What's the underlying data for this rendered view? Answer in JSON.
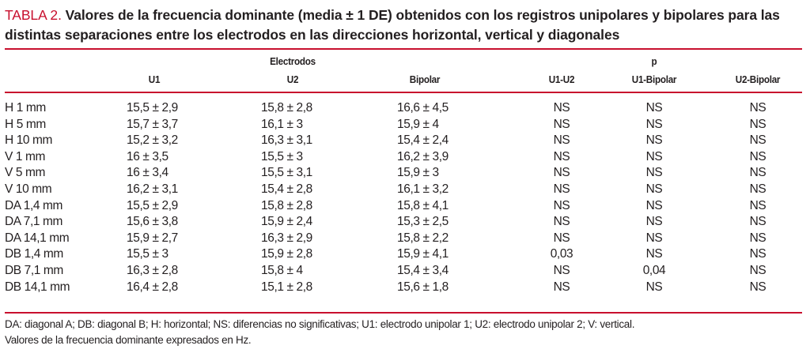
{
  "title": {
    "label": "TABLA 2.",
    "text": "Valores de la frecuencia dominante (media ± 1 DE) obtenidos con los registros unipolares y bipolares para las distintas separaciones entre los electrodos en las direcciones horizontal, vertical y diagonales"
  },
  "header": {
    "group_electrodos": "Electrodos",
    "group_p": "p",
    "columns": [
      "U1",
      "U2",
      "Bipolar",
      "U1-U2",
      "U1-Bipolar",
      "U2-Bipolar"
    ]
  },
  "rows": [
    [
      "H 1 mm",
      "15,5 ± 2,9",
      "15,8 ± 2,8",
      "16,6 ± 4,5",
      "NS",
      "NS",
      "NS"
    ],
    [
      "H 5 mm",
      "15,7 ± 3,7",
      "16,1 ± 3",
      "15,9 ± 4",
      "NS",
      "NS",
      "NS"
    ],
    [
      "H 10 mm",
      "15,2 ± 3,2",
      "16,3 ± 3,1",
      "15,4 ± 2,4",
      "NS",
      "NS",
      "NS"
    ],
    [
      "V 1 mm",
      "16 ± 3,5",
      "15,5 ± 3",
      "16,2 ± 3,9",
      "NS",
      "NS",
      "NS"
    ],
    [
      "V 5 mm",
      "16 ± 3,4",
      "15,5 ± 3,1",
      "15,9 ± 3",
      "NS",
      "NS",
      "NS"
    ],
    [
      "V 10 mm",
      "16,2 ± 3,1",
      "15,4 ± 2,8",
      "16,1 ± 3,2",
      "NS",
      "NS",
      "NS"
    ],
    [
      "DA 1,4 mm",
      "15,5 ± 2,9",
      "15,8 ± 2,8",
      "15,8 ± 4,1",
      "NS",
      "NS",
      "NS"
    ],
    [
      "DA 7,1 mm",
      "15,6 ± 3,8",
      "15,9 ± 2,4",
      "15,3 ± 2,5",
      "NS",
      "NS",
      "NS"
    ],
    [
      "DA 14,1 mm",
      "15,9 ± 2,7",
      "16,3 ± 2,9",
      "15,8 ± 2,2",
      "NS",
      "NS",
      "NS"
    ],
    [
      "DB 1,4 mm",
      "15,5 ± 3",
      "15,9 ± 2,8",
      "15,9 ± 4,1",
      "0,03",
      "NS",
      "NS"
    ],
    [
      "DB 7,1 mm",
      "16,3 ± 2,8",
      "15,8 ± 4",
      "15,4 ± 3,4",
      "NS",
      "0,04",
      "NS"
    ],
    [
      "DB 14,1 mm",
      "16,4 ± 2,8",
      "15,1 ± 2,8",
      "15,6 ± 1,8",
      "NS",
      "NS",
      "NS"
    ]
  ],
  "footnotes": [
    "DA: diagonal A; DB: diagonal B; H: horizontal; NS: diferencias no significativas; U1: electrodo unipolar 1; U2: electrodo unipolar 2; V: vertical.",
    "Valores de la frecuencia dominante expresados en Hz."
  ],
  "colors": {
    "accent": "#c8102e",
    "text": "#231f20"
  }
}
